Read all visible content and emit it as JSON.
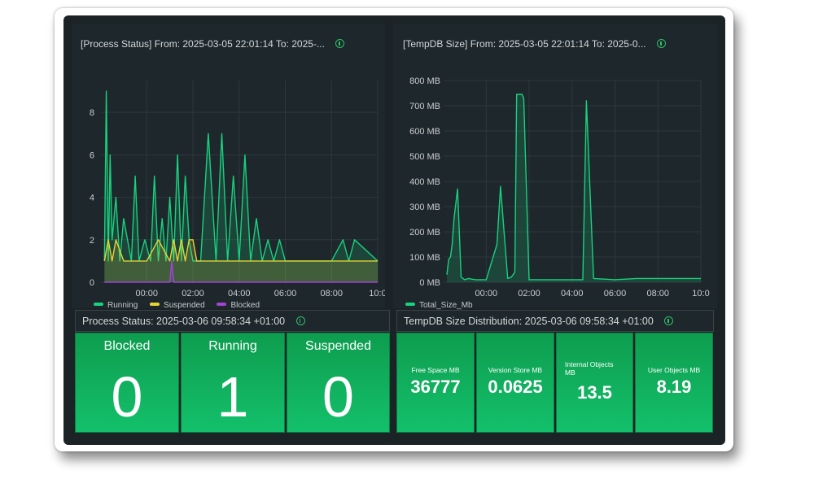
{
  "process_chart": {
    "title": "[Process Status] From: 2025-03-05 22:01:14 To: 2025-...",
    "y_ticks": [
      "0",
      "2",
      "4",
      "6",
      "8"
    ],
    "x_ticks": [
      "00:00",
      "02:00",
      "04:00",
      "06:00",
      "08:00",
      "10:0"
    ],
    "legend": [
      {
        "name": "Running",
        "color": "#19d17f"
      },
      {
        "name": "Suspended",
        "color": "#e6d335"
      },
      {
        "name": "Blocked",
        "color": "#a244d6"
      }
    ]
  },
  "tempdb_chart": {
    "title": "[TempDB Size] From: 2025-03-05 22:01:14 To: 2025-0...",
    "y_ticks": [
      "0 MB",
      "100 MB",
      "200 MB",
      "300 MB",
      "400 MB",
      "500 MB",
      "600 MB",
      "700 MB",
      "800 MB"
    ],
    "x_ticks": [
      "00:00",
      "02:00",
      "04:00",
      "06:00",
      "08:00",
      "10:0"
    ],
    "legend": [
      {
        "name": "Total_Size_Mb",
        "color": "#19d17f"
      }
    ]
  },
  "process_stat": {
    "title": "Process Status: 2025-03-06 09:58:34 +01:00",
    "tiles": [
      {
        "label": "Blocked",
        "value": "0"
      },
      {
        "label": "Running",
        "value": "1"
      },
      {
        "label": "Suspended",
        "value": "0"
      }
    ]
  },
  "tempdb_stat": {
    "title": "TempDB Size Distribution: 2025-03-06 09:58:34 +01:00",
    "tiles": [
      {
        "label": "Free Space MB",
        "value": "36777"
      },
      {
        "label": "Version Store MB",
        "value": "0.0625"
      },
      {
        "label": "Internal Objects MB",
        "value": "13.5"
      },
      {
        "label": "User Objects MB",
        "value": "8.19"
      }
    ]
  },
  "chart_data": [
    {
      "type": "line",
      "title": "[Process Status] From: 2025-03-05 22:01:14 To: 2025-...",
      "x_range": [
        "2025-03-05 22:01",
        "2025-03-06 10:00"
      ],
      "ylim": [
        0,
        9
      ],
      "grid": true,
      "legend_placement": "bottom-left",
      "series": [
        {
          "name": "Running",
          "color": "#19d17f",
          "x": [
            "22:10",
            "22:15",
            "22:20",
            "22:25",
            "22:30",
            "22:40",
            "22:50",
            "23:00",
            "23:20",
            "23:30",
            "23:40",
            "23:55",
            "00:10",
            "00:20",
            "00:30",
            "00:40",
            "00:50",
            "01:00",
            "01:10",
            "01:20",
            "01:30",
            "01:40",
            "01:50",
            "02:00",
            "02:20",
            "02:40",
            "03:00",
            "03:15",
            "03:30",
            "03:45",
            "04:00",
            "04:15",
            "04:30",
            "04:45",
            "05:00",
            "05:15",
            "05:30",
            "05:45",
            "06:00",
            "07:00",
            "08:00",
            "08:30",
            "08:45",
            "09:00",
            "10:00"
          ],
          "values": [
            1,
            9,
            1,
            6,
            2,
            4,
            1,
            3,
            1,
            5,
            1,
            2,
            1,
            5,
            1,
            3,
            1,
            4,
            1,
            6,
            1,
            5,
            2,
            1,
            1,
            7,
            1,
            7,
            1,
            5,
            1,
            6,
            1,
            3,
            1,
            2,
            1,
            2,
            1,
            1,
            1,
            2,
            1,
            2,
            1
          ]
        },
        {
          "name": "Suspended",
          "color": "#e6d335",
          "x": [
            "22:10",
            "22:20",
            "22:30",
            "22:40",
            "23:00",
            "23:30",
            "00:00",
            "00:30",
            "01:00",
            "01:10",
            "01:20",
            "01:30",
            "01:40",
            "01:50",
            "02:00",
            "02:10",
            "02:30",
            "03:00",
            "04:00",
            "05:00",
            "06:00",
            "08:00",
            "10:00"
          ],
          "values": [
            1,
            2,
            1,
            2,
            1,
            1,
            1,
            2,
            1,
            2,
            1,
            2,
            1,
            2,
            2,
            1,
            1,
            1,
            1,
            1,
            1,
            1,
            1
          ]
        },
        {
          "name": "Blocked",
          "color": "#a244d6",
          "x": [
            "22:10",
            "01:00",
            "01:05",
            "01:10",
            "10:00"
          ],
          "values": [
            0,
            0,
            1,
            0,
            0
          ]
        }
      ]
    },
    {
      "type": "line",
      "title": "[TempDB Size] From: 2025-03-05 22:01:14 To: 2025-0...",
      "x_range": [
        "2025-03-05 22:01",
        "2025-03-06 10:00"
      ],
      "ylim": [
        0,
        800
      ],
      "grid": true,
      "legend_placement": "bottom-left",
      "series": [
        {
          "name": "Total_Size_Mb",
          "color": "#19d17f",
          "x": [
            "22:10",
            "22:15",
            "22:20",
            "22:25",
            "22:30",
            "22:40",
            "22:50",
            "23:00",
            "23:10",
            "23:30",
            "00:00",
            "00:30",
            "00:40",
            "01:00",
            "01:10",
            "01:20",
            "01:25",
            "01:30",
            "01:35",
            "01:40",
            "01:45",
            "02:00",
            "03:00",
            "04:00",
            "04:30",
            "04:40",
            "05:00",
            "06:00",
            "07:00",
            "08:00",
            "09:00",
            "10:00"
          ],
          "values": [
            30,
            90,
            100,
            150,
            250,
            370,
            20,
            10,
            15,
            10,
            10,
            150,
            380,
            15,
            20,
            40,
            745,
            745,
            745,
            745,
            730,
            10,
            10,
            10,
            10,
            720,
            15,
            10,
            15,
            15,
            15,
            15
          ]
        }
      ]
    }
  ]
}
